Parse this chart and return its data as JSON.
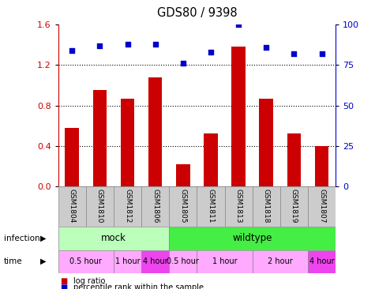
{
  "title": "GDS80 / 9398",
  "samples": [
    "GSM1804",
    "GSM1810",
    "GSM1812",
    "GSM1806",
    "GSM1805",
    "GSM1811",
    "GSM1813",
    "GSM1818",
    "GSM1819",
    "GSM1807"
  ],
  "log_ratio": [
    0.58,
    0.95,
    0.87,
    1.08,
    0.22,
    0.52,
    1.38,
    0.87,
    0.52,
    0.4
  ],
  "percentile": [
    84,
    87,
    88,
    88,
    76,
    83,
    100,
    86,
    82,
    82
  ],
  "bar_color": "#cc0000",
  "dot_color": "#0000cc",
  "ylim_left": [
    0,
    1.6
  ],
  "ylim_right": [
    0,
    100
  ],
  "yticks_left": [
    0,
    0.4,
    0.8,
    1.2,
    1.6
  ],
  "yticks_right": [
    0,
    25,
    50,
    75,
    100
  ],
  "dotted_lines": [
    0.4,
    0.8,
    1.2
  ],
  "infection_groups": [
    {
      "label": "mock",
      "start": 0,
      "end": 4,
      "color": "#bbffbb"
    },
    {
      "label": "wildtype",
      "start": 4,
      "end": 10,
      "color": "#44ee44"
    }
  ],
  "time_groups": [
    {
      "label": "0.5 hour",
      "start": 0,
      "end": 2,
      "color": "#ffaaff"
    },
    {
      "label": "1 hour",
      "start": 2,
      "end": 3,
      "color": "#ffaaff"
    },
    {
      "label": "4 hour",
      "start": 3,
      "end": 4,
      "color": "#ee44ee"
    },
    {
      "label": "0.5 hour",
      "start": 4,
      "end": 5,
      "color": "#ffaaff"
    },
    {
      "label": "1 hour",
      "start": 5,
      "end": 7,
      "color": "#ffaaff"
    },
    {
      "label": "2 hour",
      "start": 7,
      "end": 9,
      "color": "#ffaaff"
    },
    {
      "label": "4 hour",
      "start": 9,
      "end": 10,
      "color": "#ee44ee"
    }
  ],
  "legend_items": [
    {
      "label": "log ratio",
      "color": "#cc0000"
    },
    {
      "label": "percentile rank within the sample",
      "color": "#0000cc"
    }
  ],
  "infection_label": "infection",
  "time_label": "time",
  "bg": "#ffffff",
  "sample_box_color": "#cccccc",
  "sample_box_edge": "#888888"
}
